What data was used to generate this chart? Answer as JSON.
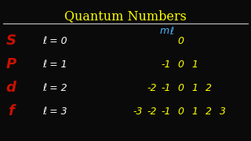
{
  "title": "Quantum Numbers",
  "title_color": "#FFFF00",
  "background_color": "#0a0a0a",
  "line_color": "#C8C8C8",
  "ml_m": "m",
  "ml_l": "ℓ",
  "ml_color": "#4DB8FF",
  "rows": [
    {
      "letter": "S",
      "equation": "ℓ = 0",
      "values": [
        "0"
      ],
      "letter_color": "#CC1100",
      "eq_color": "#FFFFFF",
      "val_color": "#FFFF00"
    },
    {
      "letter": "P",
      "equation": "ℓ = 1",
      "values": [
        "-1",
        "0",
        "1"
      ],
      "letter_color": "#CC1100",
      "eq_color": "#FFFFFF",
      "val_color": "#FFFF00"
    },
    {
      "letter": "d",
      "equation": "ℓ = 2",
      "values": [
        "-2",
        "-1",
        "0",
        "1",
        "2"
      ],
      "letter_color": "#CC1100",
      "eq_color": "#FFFFFF",
      "val_color": "#FFFF00"
    },
    {
      "letter": "f",
      "equation": "ℓ = 3",
      "values": [
        "-3",
        "-2",
        "-1",
        "0",
        "1",
        "2",
        "3"
      ],
      "letter_color": "#CC1100",
      "eq_color": "#FFFFFF",
      "val_color": "#FFFF00"
    }
  ],
  "title_fontsize": 11.5,
  "letter_fontsize": 13,
  "eq_fontsize": 9,
  "val_fontsize": 9,
  "ml_fontsize": 8
}
